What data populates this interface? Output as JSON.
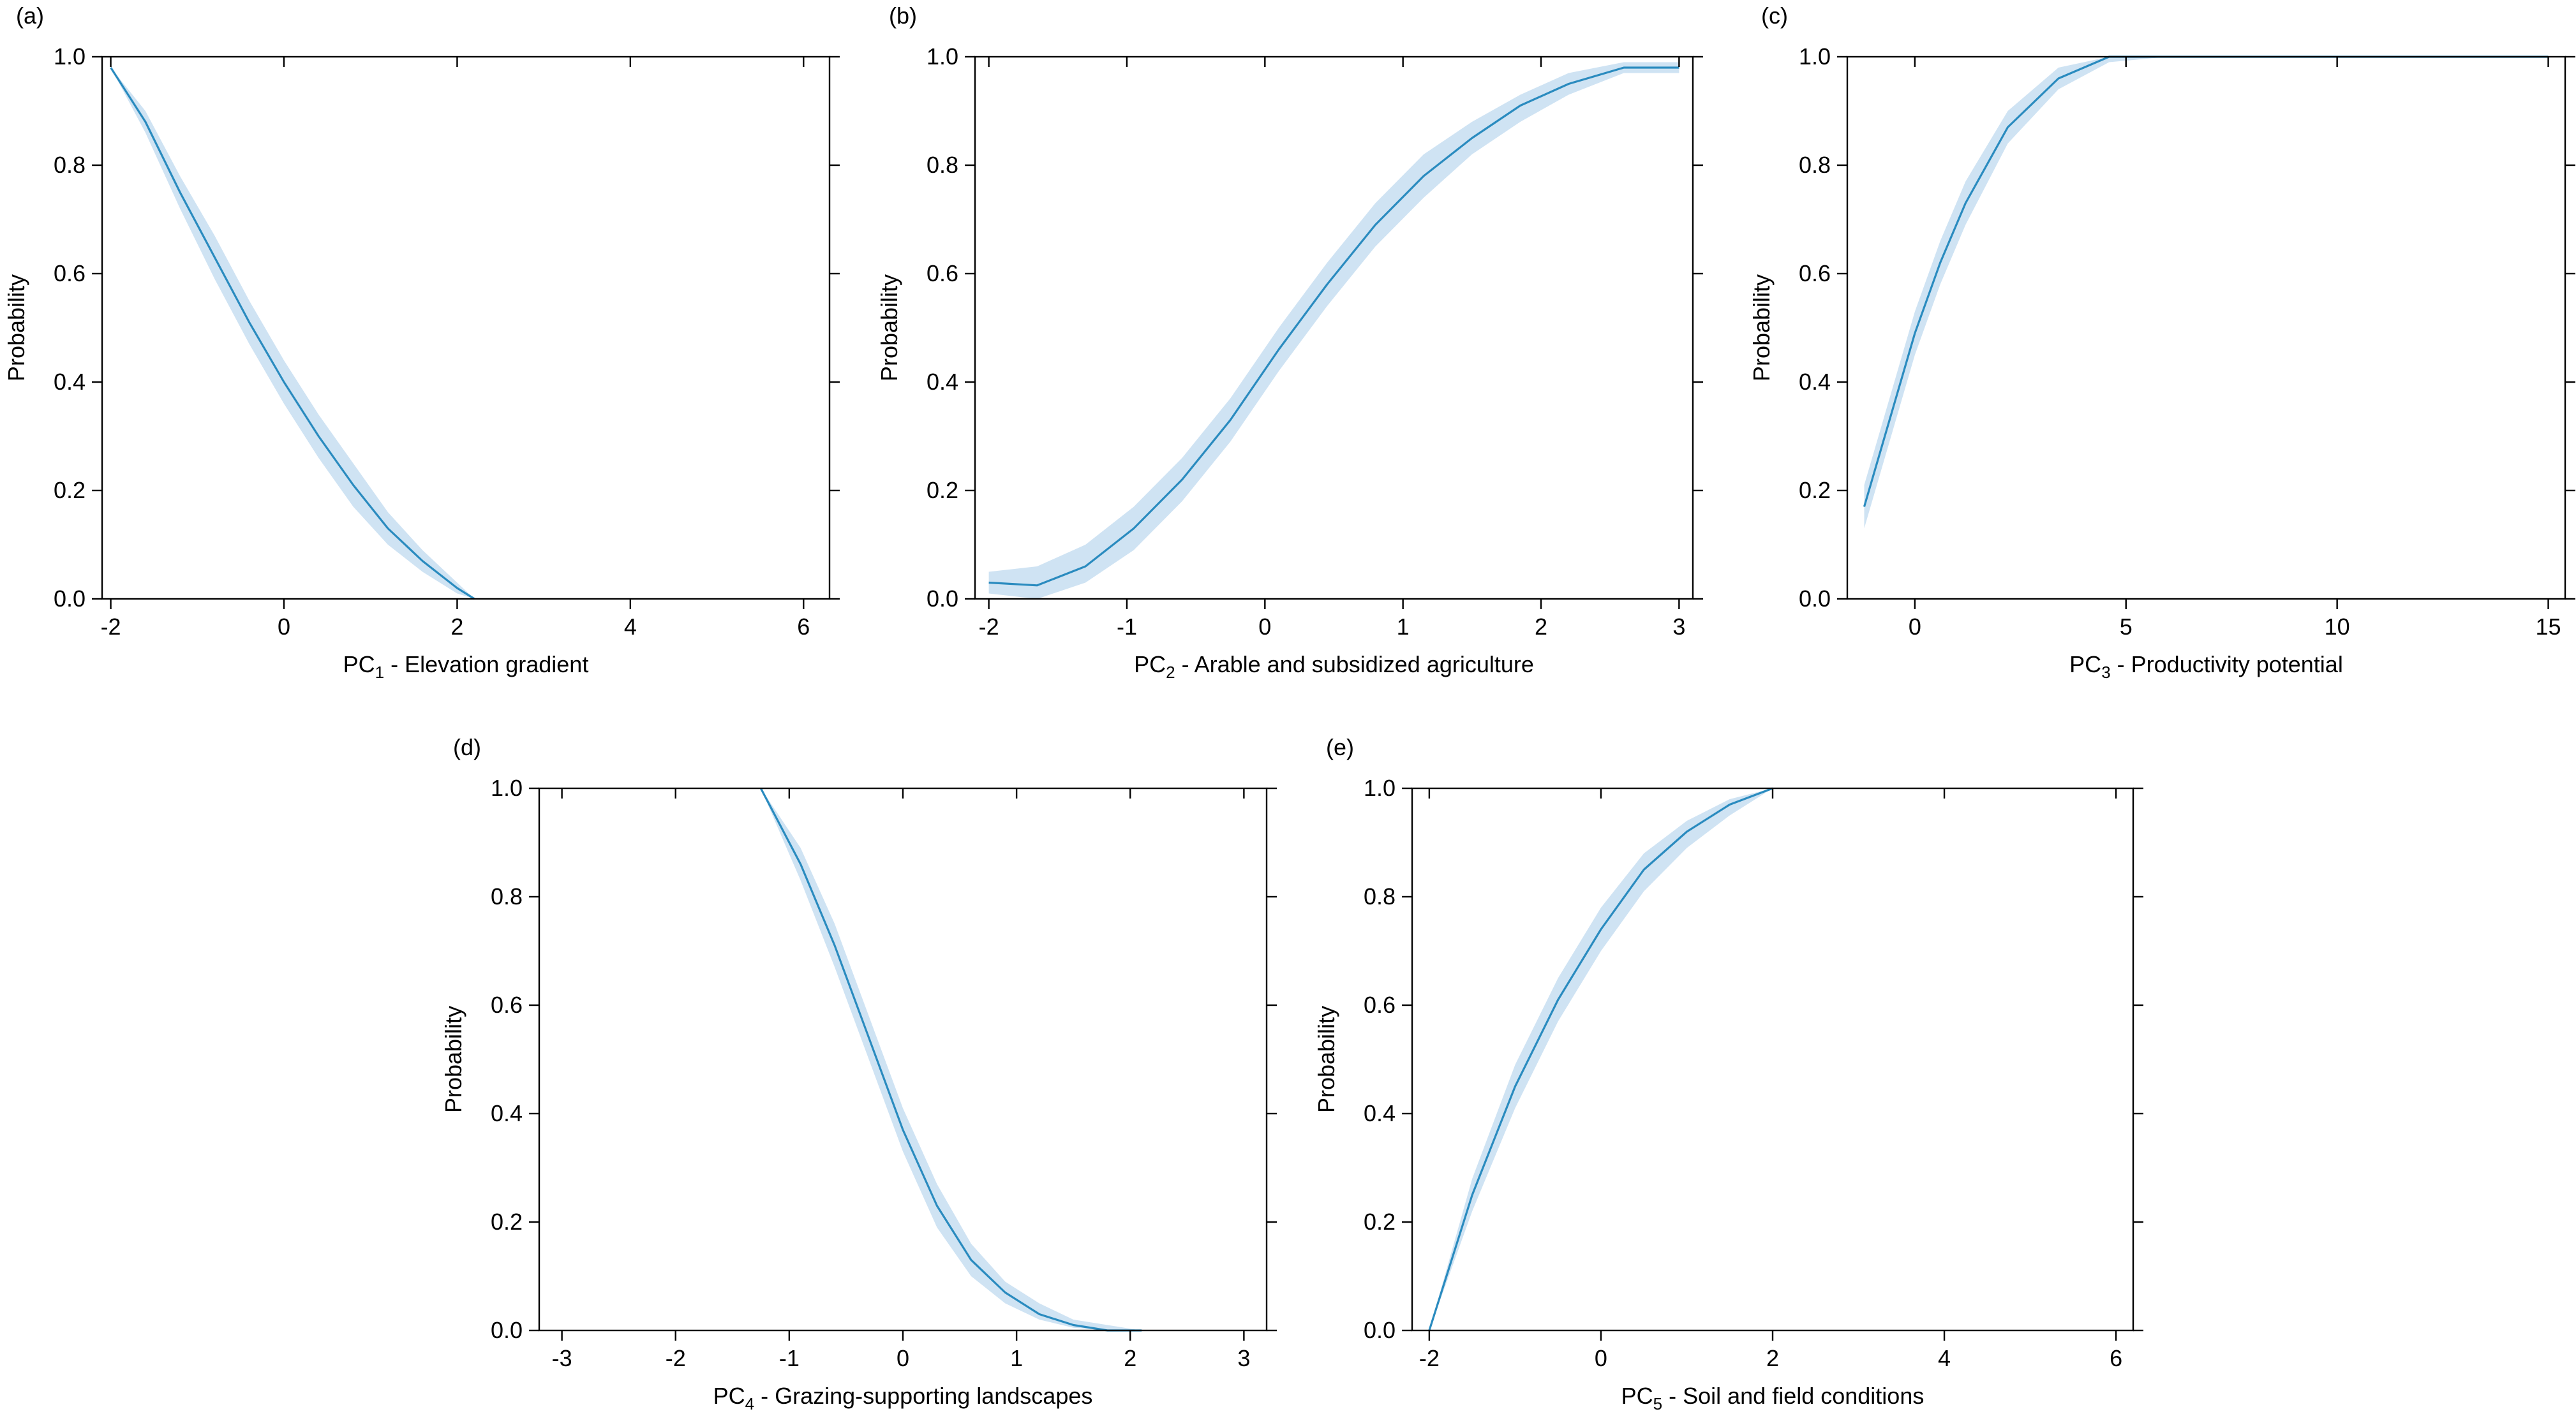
{
  "figure": {
    "line_color": "#2a8bbf",
    "band_color": "#cfe3f3"
  },
  "chart_data": [
    {
      "panel_label": "(a)",
      "type": "line",
      "xlabel_prefix": "PC",
      "xlabel_sub": "1",
      "xlabel_suffix": " - Elevation gradient",
      "ylabel": "Probability",
      "xlim": [
        -2.1,
        6.3
      ],
      "ylim": [
        0,
        1
      ],
      "xticks": [
        -2,
        0,
        2,
        4,
        6
      ],
      "xtick_labels": [
        "-2",
        "0",
        "2",
        "4",
        "6"
      ],
      "yticks": [
        0,
        0.2,
        0.4,
        0.6,
        0.8,
        1.0
      ],
      "ytick_labels": [
        "0.0",
        "0.2",
        "0.4",
        "0.6",
        "0.8",
        "1.0"
      ],
      "x": [
        -2.0,
        -1.6,
        -1.2,
        -0.8,
        -0.4,
        0.0,
        0.4,
        0.8,
        1.2,
        1.6,
        2.0,
        2.2
      ],
      "y": [
        0.98,
        0.88,
        0.75,
        0.63,
        0.51,
        0.4,
        0.3,
        0.21,
        0.13,
        0.07,
        0.02,
        0.0
      ],
      "lower": [
        0.98,
        0.86,
        0.72,
        0.59,
        0.47,
        0.36,
        0.26,
        0.17,
        0.1,
        0.05,
        0.01,
        0.0
      ],
      "upper": [
        0.98,
        0.9,
        0.78,
        0.67,
        0.55,
        0.44,
        0.34,
        0.25,
        0.16,
        0.09,
        0.03,
        0.0
      ]
    },
    {
      "panel_label": "(b)",
      "type": "line",
      "xlabel_prefix": "PC",
      "xlabel_sub": "2",
      "xlabel_suffix": " - Arable and subsidized agriculture",
      "ylabel": "Probability",
      "xlim": [
        -2.1,
        3.1
      ],
      "ylim": [
        0,
        1
      ],
      "xticks": [
        -2,
        -1,
        0,
        1,
        2,
        3
      ],
      "xtick_labels": [
        "-2",
        "-1",
        "0",
        "1",
        "2",
        "3"
      ],
      "yticks": [
        0,
        0.2,
        0.4,
        0.6,
        0.8,
        1.0
      ],
      "ytick_labels": [
        "0.0",
        "0.2",
        "0.4",
        "0.6",
        "0.8",
        "1.0"
      ],
      "x": [
        -2.0,
        -1.65,
        -1.3,
        -0.95,
        -0.6,
        -0.25,
        0.1,
        0.45,
        0.8,
        1.15,
        1.5,
        1.85,
        2.2,
        2.6,
        3.0
      ],
      "y": [
        0.03,
        0.025,
        0.06,
        0.13,
        0.22,
        0.33,
        0.46,
        0.58,
        0.69,
        0.78,
        0.85,
        0.91,
        0.95,
        0.98,
        0.98
      ],
      "lower": [
        0.01,
        0.0,
        0.03,
        0.09,
        0.18,
        0.29,
        0.42,
        0.54,
        0.65,
        0.74,
        0.82,
        0.88,
        0.93,
        0.97,
        0.97
      ],
      "upper": [
        0.05,
        0.06,
        0.1,
        0.17,
        0.26,
        0.37,
        0.5,
        0.62,
        0.73,
        0.82,
        0.88,
        0.93,
        0.97,
        0.99,
        0.99
      ]
    },
    {
      "panel_label": "(c)",
      "type": "line",
      "xlabel_prefix": "PC",
      "xlabel_sub": "3",
      "xlabel_suffix": " - Productivity potential",
      "ylabel": "Probability",
      "xlim": [
        -1.6,
        15.4
      ],
      "ylim": [
        0,
        1
      ],
      "xticks": [
        0,
        5,
        10,
        15
      ],
      "xtick_labels": [
        "0",
        "5",
        "10",
        "15"
      ],
      "yticks": [
        0,
        0.2,
        0.4,
        0.6,
        0.8,
        1.0
      ],
      "ytick_labels": [
        "0.0",
        "0.2",
        "0.4",
        "0.6",
        "0.8",
        "1.0"
      ],
      "x": [
        -1.2,
        -0.6,
        0.0,
        0.6,
        1.2,
        2.2,
        3.4,
        4.6,
        6.0,
        8.0,
        10.0,
        12.0,
        15.0
      ],
      "y": [
        0.17,
        0.33,
        0.49,
        0.62,
        0.73,
        0.87,
        0.96,
        1.0,
        1.0,
        1.0,
        1.0,
        1.0,
        1.0
      ],
      "lower": [
        0.13,
        0.29,
        0.45,
        0.58,
        0.69,
        0.84,
        0.94,
        0.99,
        1.0,
        1.0,
        1.0,
        1.0,
        1.0
      ],
      "upper": [
        0.21,
        0.37,
        0.53,
        0.66,
        0.77,
        0.9,
        0.98,
        1.0,
        1.0,
        1.0,
        1.0,
        1.0,
        1.0
      ]
    },
    {
      "panel_label": "(d)",
      "type": "line",
      "xlabel_prefix": "PC",
      "xlabel_sub": "4",
      "xlabel_suffix": " - Grazing-supporting landscapes",
      "ylabel": "Probability",
      "xlim": [
        -3.2,
        3.2
      ],
      "ylim": [
        0,
        1
      ],
      "xticks": [
        -3,
        -2,
        -1,
        0,
        1,
        2,
        3
      ],
      "xtick_labels": [
        "-3",
        "-2",
        "-1",
        "0",
        "1",
        "2",
        "3"
      ],
      "yticks": [
        0,
        0.2,
        0.4,
        0.6,
        0.8,
        1.0
      ],
      "ytick_labels": [
        "0.0",
        "0.2",
        "0.4",
        "0.6",
        "0.8",
        "1.0"
      ],
      "x": [
        -1.25,
        -0.9,
        -0.6,
        -0.3,
        0.0,
        0.3,
        0.6,
        0.9,
        1.2,
        1.5,
        1.8,
        2.1
      ],
      "y": [
        1.0,
        0.86,
        0.71,
        0.54,
        0.37,
        0.23,
        0.13,
        0.07,
        0.03,
        0.01,
        0.0,
        0.0
      ],
      "lower": [
        1.0,
        0.83,
        0.67,
        0.5,
        0.33,
        0.19,
        0.1,
        0.05,
        0.02,
        0.005,
        0.0,
        0.0
      ],
      "upper": [
        1.0,
        0.89,
        0.75,
        0.58,
        0.41,
        0.27,
        0.16,
        0.09,
        0.05,
        0.02,
        0.01,
        0.0
      ]
    },
    {
      "panel_label": "(e)",
      "type": "line",
      "xlabel_prefix": "PC",
      "xlabel_sub": "5",
      "xlabel_suffix": " - Soil and field conditions",
      "ylabel": "Probability",
      "xlim": [
        -2.2,
        6.2
      ],
      "ylim": [
        0,
        1
      ],
      "xticks": [
        -2,
        0,
        2,
        4,
        6
      ],
      "xtick_labels": [
        "-2",
        "0",
        "2",
        "4",
        "6"
      ],
      "yticks": [
        0,
        0.2,
        0.4,
        0.6,
        0.8,
        1.0
      ],
      "ytick_labels": [
        "0.0",
        "0.2",
        "0.4",
        "0.6",
        "0.8",
        "1.0"
      ],
      "x": [
        -2.0,
        -1.5,
        -1.0,
        -0.5,
        0.0,
        0.5,
        1.0,
        1.5,
        2.0
      ],
      "y": [
        0.0,
        0.25,
        0.45,
        0.61,
        0.74,
        0.85,
        0.92,
        0.97,
        1.0
      ],
      "lower": [
        0.0,
        0.22,
        0.41,
        0.57,
        0.7,
        0.81,
        0.89,
        0.95,
        1.0
      ],
      "upper": [
        0.0,
        0.28,
        0.49,
        0.65,
        0.78,
        0.88,
        0.94,
        0.98,
        1.0
      ]
    }
  ]
}
